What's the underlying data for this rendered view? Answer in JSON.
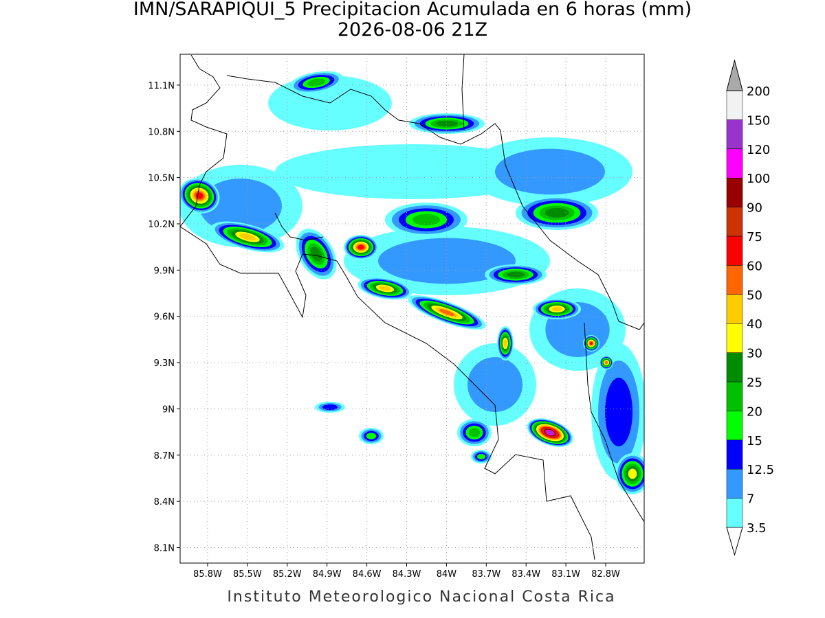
{
  "header": {
    "title": "IMN/SARAPIQUI_5 Precipitacion Acumulada en 6 horas (mm)",
    "subtitle": "2026-08-06 21Z"
  },
  "map": {
    "xlim": [
      -86.007,
      -82.51
    ],
    "ylim": [
      8.0,
      11.3
    ],
    "xticks": [
      {
        "value": -85.8,
        "label": "85.8W"
      },
      {
        "value": -85.5,
        "label": "85.5W"
      },
      {
        "value": -85.2,
        "label": "85.2W"
      },
      {
        "value": -84.9,
        "label": "84.9W"
      },
      {
        "value": -84.6,
        "label": "84.6W"
      },
      {
        "value": -84.3,
        "label": "84.3W"
      },
      {
        "value": -84,
        "label": "84W"
      },
      {
        "value": -83.7,
        "label": "83.7W"
      },
      {
        "value": -83.4,
        "label": "83.4W"
      },
      {
        "value": -83.1,
        "label": "83.1W"
      },
      {
        "value": -82.8,
        "label": "82.8W"
      }
    ],
    "yticks": [
      {
        "value": 8.1,
        "label": "8.1N"
      },
      {
        "value": 8.4,
        "label": "8.4N"
      },
      {
        "value": 8.7,
        "label": "8.7N"
      },
      {
        "value": 9,
        "label": "9N"
      },
      {
        "value": 9.3,
        "label": "9.3N"
      },
      {
        "value": 9.6,
        "label": "9.6N"
      },
      {
        "value": 9.9,
        "label": "9.9N"
      },
      {
        "value": 10.2,
        "label": "10.2N"
      },
      {
        "value": 10.5,
        "label": "10.5N"
      },
      {
        "value": 10.8,
        "label": "10.8N"
      },
      {
        "value": 11.1,
        "label": "11.1N"
      }
    ],
    "grid": true
  },
  "legend": {
    "levels": [
      3.5,
      7,
      12.5,
      15,
      20,
      25,
      30,
      40,
      50,
      60,
      75,
      90,
      100,
      120,
      150,
      200
    ],
    "colors": [
      "#ffffff",
      "#66ffff",
      "#3399ff",
      "#0000ff",
      "#00ff00",
      "#00c000",
      "#008c00",
      "#ffff00",
      "#ffcc00",
      "#ff6600",
      "#ff0000",
      "#cc3300",
      "#990000",
      "#ff00ff",
      "#9933cc",
      "#f2f2f2",
      "#aaaaaa"
    ]
  },
  "footer": "Instituto Meteorologico Nacional Costa Rica"
}
